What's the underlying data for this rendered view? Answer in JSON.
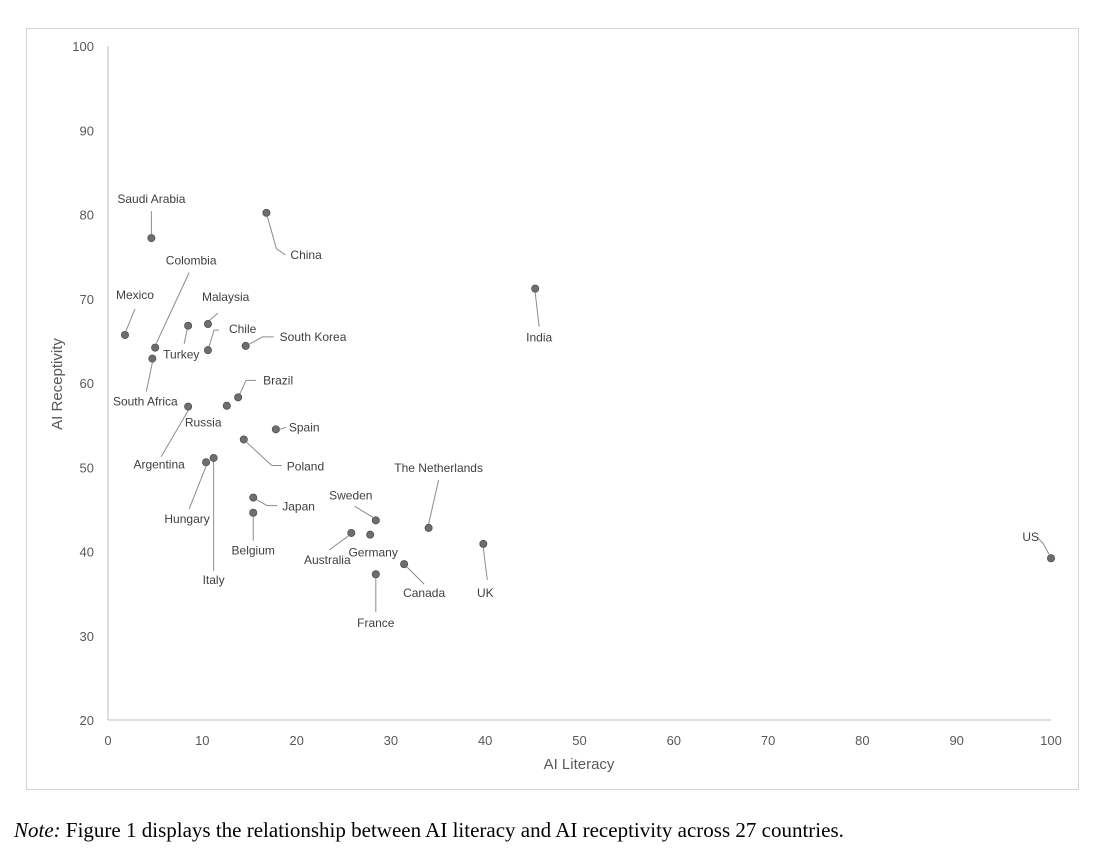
{
  "chart_data": {
    "type": "scatter",
    "title": "",
    "xlabel": "AI Literacy",
    "ylabel": "AI Receptivity",
    "xlim": [
      0,
      100
    ],
    "ylim": [
      20,
      100
    ],
    "xticks": [
      0,
      10,
      20,
      30,
      40,
      50,
      60,
      70,
      80,
      90,
      100
    ],
    "yticks": [
      20,
      30,
      40,
      50,
      60,
      70,
      80,
      90,
      100
    ],
    "grid": false,
    "legend": "none",
    "marker_color": "#6e6e6e",
    "points": [
      {
        "label": "Saudi Arabia",
        "x": 4.6,
        "y": 77.2
      },
      {
        "label": "China",
        "x": 16.8,
        "y": 80.2
      },
      {
        "label": "India",
        "x": 45.3,
        "y": 71.2
      },
      {
        "label": "Mexico",
        "x": 1.8,
        "y": 65.7
      },
      {
        "label": "Colombia",
        "x": 5.0,
        "y": 64.2
      },
      {
        "label": "Malaysia",
        "x": 10.6,
        "y": 67.0
      },
      {
        "label": "Turkey",
        "x": 8.5,
        "y": 66.8
      },
      {
        "label": "Chile",
        "x": 10.6,
        "y": 63.9
      },
      {
        "label": "South Korea",
        "x": 14.6,
        "y": 64.4
      },
      {
        "label": "South Africa",
        "x": 4.7,
        "y": 62.9
      },
      {
        "label": "Brazil",
        "x": 13.8,
        "y": 58.3
      },
      {
        "label": "Russia",
        "x": 12.6,
        "y": 57.3
      },
      {
        "label": "Argentina",
        "x": 8.5,
        "y": 57.2
      },
      {
        "label": "Spain",
        "x": 17.8,
        "y": 54.5
      },
      {
        "label": "Poland",
        "x": 14.4,
        "y": 53.3
      },
      {
        "label": "Hungary",
        "x": 10.4,
        "y": 50.6
      },
      {
        "label": "Italy",
        "x": 11.2,
        "y": 51.1
      },
      {
        "label": "Japan",
        "x": 15.4,
        "y": 46.4
      },
      {
        "label": "Belgium",
        "x": 15.4,
        "y": 44.6
      },
      {
        "label": "Sweden",
        "x": 28.4,
        "y": 43.7
      },
      {
        "label": "The Netherlands",
        "x": 34.0,
        "y": 42.8
      },
      {
        "label": "Australia",
        "x": 25.8,
        "y": 42.2
      },
      {
        "label": "Germany",
        "x": 27.8,
        "y": 42.0
      },
      {
        "label": "UK",
        "x": 39.8,
        "y": 40.9
      },
      {
        "label": "Canada",
        "x": 31.4,
        "y": 38.5
      },
      {
        "label": "France",
        "x": 28.4,
        "y": 37.3
      },
      {
        "label": "US",
        "x": 100,
        "y": 39.2
      }
    ]
  },
  "note": {
    "label": "Note:",
    "text": " Figure 1 displays the relationship between AI literacy and AI receptivity across 27 countries."
  }
}
